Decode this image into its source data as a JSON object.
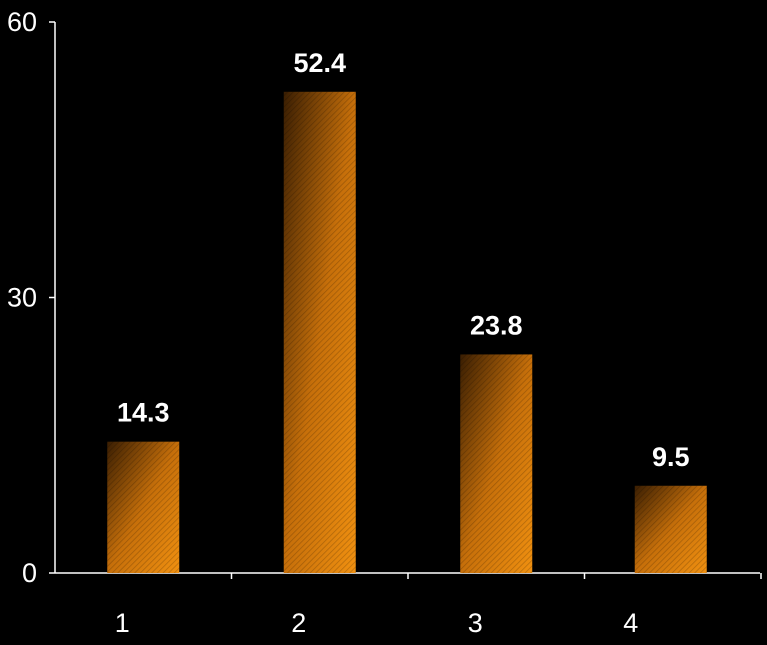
{
  "chart_data": {
    "type": "bar",
    "categories": [
      "1",
      "2",
      "3",
      "4"
    ],
    "values": [
      14.3,
      52.4,
      23.8,
      9.5
    ],
    "value_labels": [
      "14.3",
      "52.4",
      "23.8",
      "9.5"
    ],
    "title": "",
    "xlabel": "",
    "ylabel": "",
    "ylim": [
      0,
      60
    ],
    "yticks": [
      "0",
      "30",
      "60"
    ],
    "grid": false,
    "legend": "none",
    "colors": {
      "background": "#000000",
      "axis": "#ffffff",
      "text": "#ffffff",
      "bar_light": "#f09010",
      "bar_dark": "#3a1e02"
    }
  }
}
